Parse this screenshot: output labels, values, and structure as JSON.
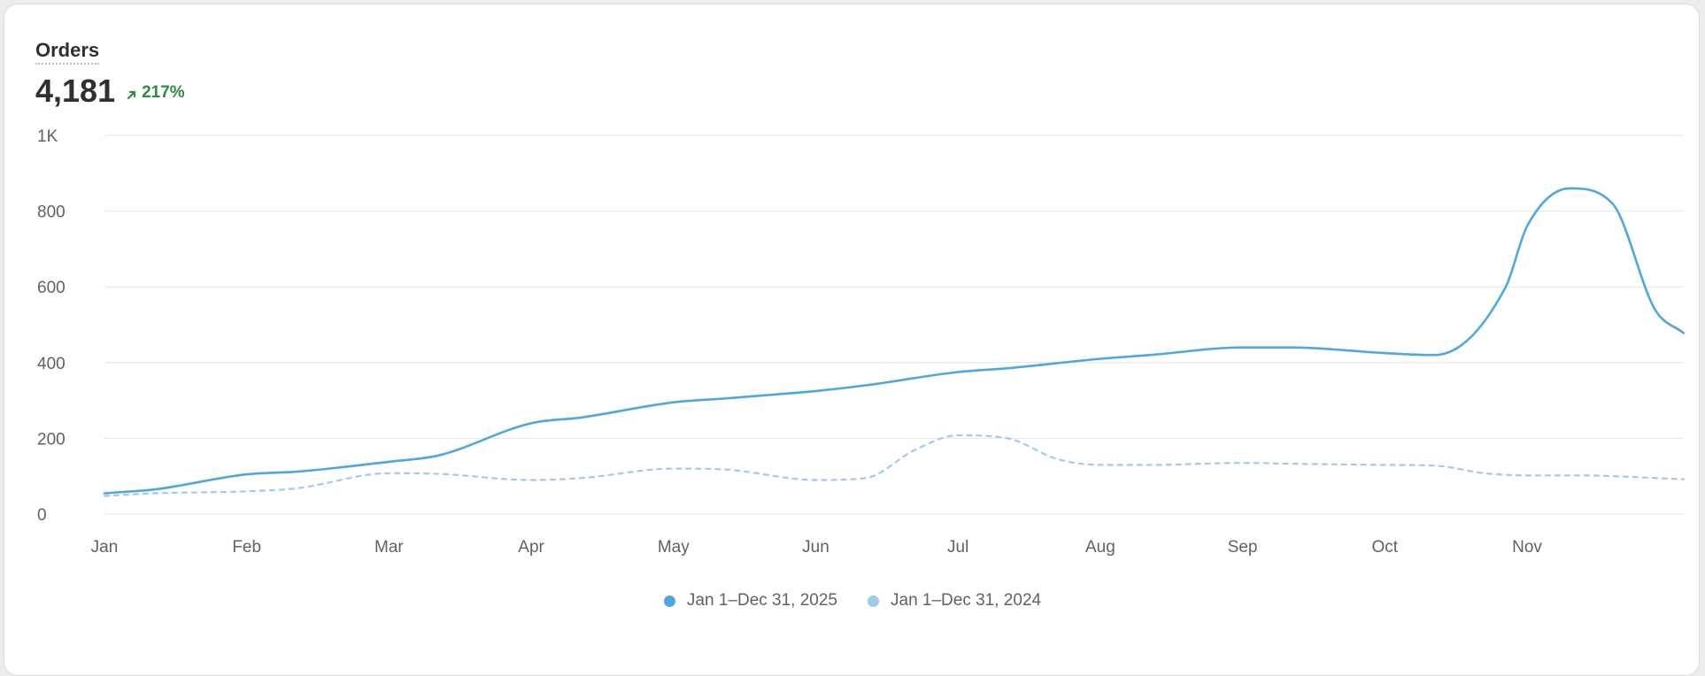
{
  "card": {
    "title": "Orders",
    "total": "4,181",
    "delta": "217%",
    "delta_icon": "arrow-up-right-icon"
  },
  "colors": {
    "current": "#4fa7e2",
    "previous": "#9ccbec",
    "positive": "#2e8b45",
    "grid": "#e6e6e6",
    "axis_text": "#616161"
  },
  "chart_data": {
    "type": "line",
    "title": "Orders",
    "xlabel": "",
    "ylabel": "",
    "ylim": [
      0,
      1000
    ],
    "yticks": [
      0,
      200,
      400,
      600,
      800,
      1000
    ],
    "ytick_labels": [
      "0",
      "200",
      "400",
      "600",
      "800",
      "1K"
    ],
    "month_labels": [
      "Jan",
      "Feb",
      "Mar",
      "Apr",
      "May",
      "Jun",
      "Jul",
      "Aug",
      "Sep",
      "Oct",
      "Nov"
    ],
    "x_range": [
      0,
      11.1
    ],
    "grid": true,
    "legend_position": "bottom-center",
    "series": [
      {
        "name": "Jan 1–Dec 31, 2025",
        "style": "solid",
        "x": [
          0,
          0.35,
          1,
          1.35,
          2,
          2.35,
          3,
          3.35,
          4,
          4.35,
          5,
          5.35,
          6,
          6.35,
          7,
          7.35,
          8,
          8.35,
          9,
          9.35,
          9.85,
          10,
          10.3,
          10.6,
          10.9,
          11.1
        ],
        "values": [
          55,
          65,
          105,
          112,
          138,
          155,
          240,
          255,
          295,
          305,
          325,
          340,
          375,
          385,
          410,
          420,
          440,
          440,
          425,
          420,
          600,
          760,
          860,
          820,
          540,
          478
        ]
      },
      {
        "name": "Jan 1–Dec 31, 2024",
        "style": "dashed",
        "x": [
          0,
          0.35,
          1,
          1.35,
          2,
          2.35,
          3,
          3.35,
          4,
          4.35,
          5,
          5.35,
          5.7,
          6,
          6.35,
          6.7,
          7,
          7.35,
          8,
          8.35,
          9,
          9.35,
          9.7,
          10,
          10.35,
          11.1
        ],
        "values": [
          48,
          55,
          60,
          68,
          108,
          106,
          90,
          95,
          120,
          118,
          90,
          95,
          170,
          208,
          200,
          145,
          130,
          130,
          135,
          133,
          130,
          128,
          108,
          102,
          102,
          92
        ]
      }
    ]
  }
}
